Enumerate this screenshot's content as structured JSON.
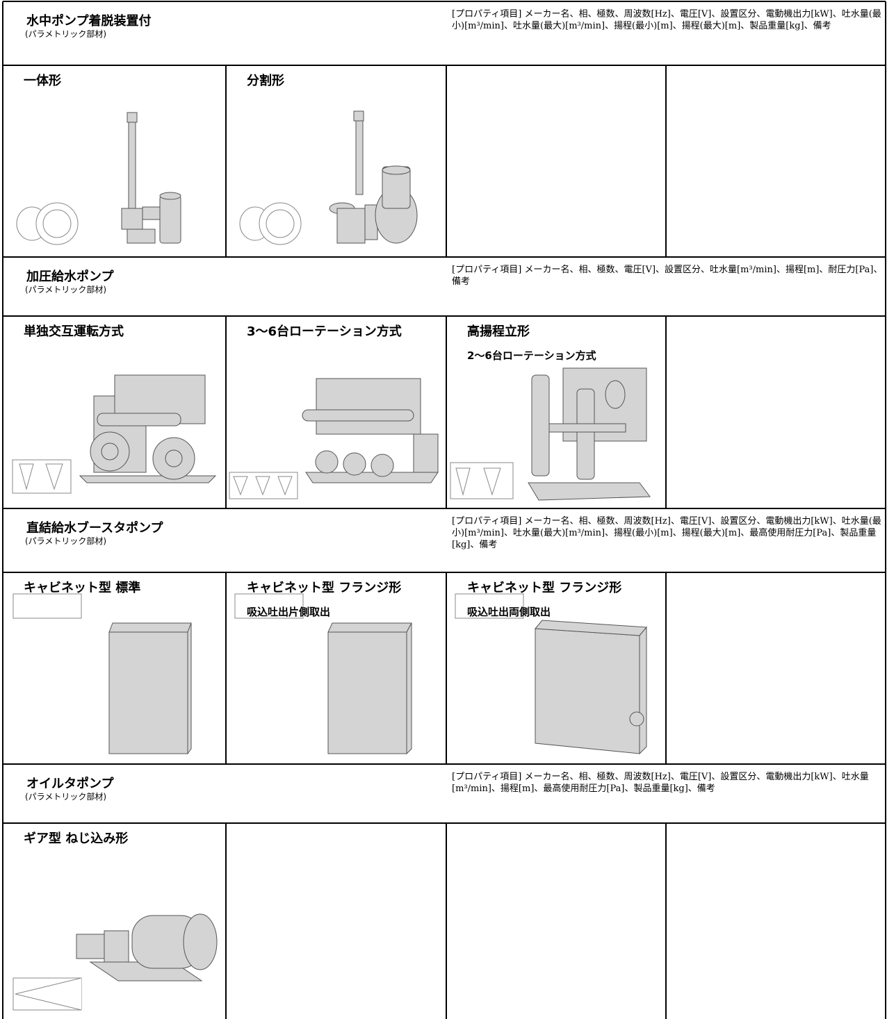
{
  "sections": [
    {
      "title": "水中ポンプ着脱装置付",
      "subtitle": "(パラメトリック部材)",
      "properties": "[プロパティ項目] メーカー名、相、極数、周波数[Hz]、電圧[V]、設置区分、電動機出力[kW]、吐水量(最小)[m³/min]、吐水量(最大)[m³/min]、揚程(最小)[m]、揚程(最大)[m]、製品重量[kg]、備考",
      "items": [
        {
          "label": "一体形"
        },
        {
          "label": "分割形"
        }
      ]
    },
    {
      "title": "加圧給水ポンプ",
      "subtitle": "(パラメトリック部材)",
      "properties": "[プロパティ項目] メーカー名、相、極数、電圧[V]、設置区分、吐水量[m³/min]、揚程[m]、耐圧力[Pa]、備考",
      "items": [
        {
          "label": "単独交互運転方式"
        },
        {
          "label": "3～6台ローテーション方式"
        },
        {
          "label": "高揚程立形",
          "sublabel": "2～6台ローテーション方式"
        }
      ]
    },
    {
      "title": "直結給水ブースタポンプ",
      "subtitle": "(パラメトリック部材)",
      "properties": "[プロパティ項目] メーカー名、相、極数、周波数[Hz]、電圧[V]、設置区分、電動機出力[kW]、吐水量(最小)[m³/min]、吐水量(最大)[m³/min]、揚程(最小)[m]、揚程(最大)[m]、最高使用耐圧力[Pa]、製品重量[kg]、備考",
      "items": [
        {
          "label": "キャビネット型 標準"
        },
        {
          "label": "キャビネット型 フランジ形",
          "sublabel": "吸込吐出片側取出"
        },
        {
          "label": "キャビネット型 フランジ形",
          "sublabel": "吸込吐出両側取出"
        }
      ]
    },
    {
      "title": "オイルタポンプ",
      "subtitle": "(パラメトリック部材)",
      "properties": "[プロパティ項目] メーカー名、相、極数、周波数[Hz]、電圧[V]、設置区分、電動機出力[kW]、吐水量[m³/min]、揚程[m]、最高使用耐圧力[Pa]、製品重量[kg]、備考",
      "items": [
        {
          "label": "ギア型 ねじ込み形"
        }
      ]
    }
  ]
}
